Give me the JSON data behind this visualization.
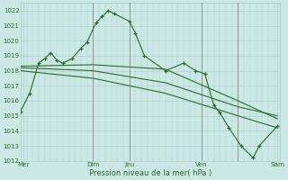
{
  "bg_color": "#cce8e4",
  "grid_color": "#aacccc",
  "line_color": "#2d6a2d",
  "xlabel": "Pression niveau de la mer( hPa )",
  "ylim": [
    1012,
    1022.5
  ],
  "yticks": [
    1012,
    1013,
    1014,
    1015,
    1016,
    1017,
    1018,
    1019,
    1020,
    1021,
    1022
  ],
  "xlim": [
    0,
    43
  ],
  "xtick_positions": [
    0.5,
    12,
    18,
    30,
    36,
    42.5
  ],
  "xtick_labels": [
    "Mer",
    "Dim",
    "Jeu",
    "Ven",
    "",
    "Sam"
  ],
  "vlines_x": [
    12,
    18,
    30,
    36
  ],
  "line1_x": [
    0,
    1.5,
    3,
    4,
    5,
    6,
    7,
    8.5,
    10,
    11,
    12.5,
    13.5,
    14.5,
    15.5,
    18,
    19,
    20.5,
    24,
    27,
    29,
    30.5,
    32,
    33,
    34.5,
    36.5,
    38.5,
    39.5,
    42.5
  ],
  "line1_y": [
    1015.3,
    1016.5,
    1018.5,
    1018.8,
    1019.2,
    1018.7,
    1018.5,
    1018.8,
    1019.5,
    1019.9,
    1021.2,
    1021.6,
    1022.0,
    1021.8,
    1021.3,
    1020.5,
    1019.0,
    1018.0,
    1018.5,
    1018.0,
    1017.8,
    1015.7,
    1015.2,
    1014.2,
    1013.0,
    1012.2,
    1013.0,
    1014.3
  ],
  "line2_x": [
    0,
    12,
    24,
    36,
    42.5
  ],
  "line2_y": [
    1018.3,
    1018.4,
    1018.1,
    1016.0,
    1014.8
  ],
  "line3_x": [
    0,
    12,
    24,
    36,
    42.5
  ],
  "line3_y": [
    1018.2,
    1018.0,
    1017.2,
    1015.6,
    1015.0
  ],
  "line4_x": [
    0,
    12,
    24,
    36,
    42.5
  ],
  "line4_y": [
    1018.0,
    1017.5,
    1016.5,
    1015.0,
    1014.2
  ],
  "figsize": [
    3.2,
    2.0
  ],
  "dpi": 100
}
